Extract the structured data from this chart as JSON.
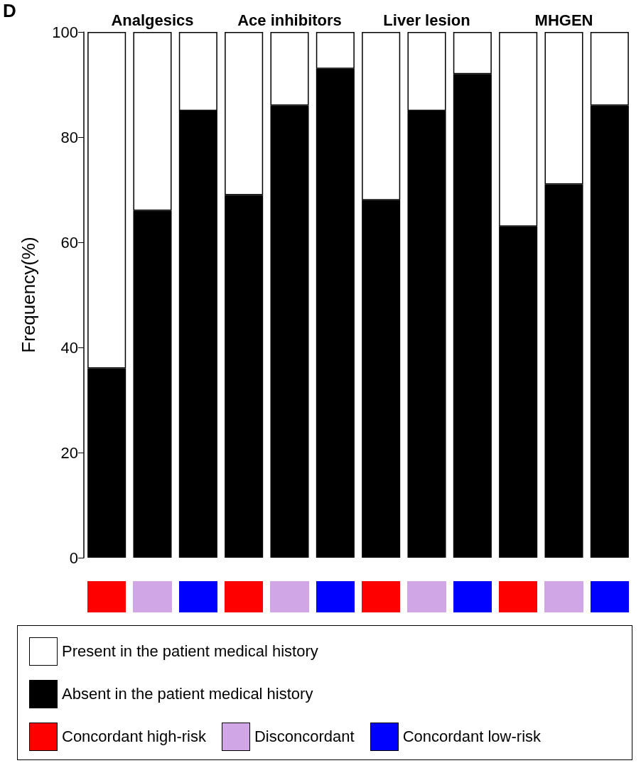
{
  "chart_data": {
    "type": "bar",
    "title": "D",
    "ylabel": "Frequency(%)",
    "stacked": true,
    "categories": [
      null,
      null,
      null,
      null,
      null,
      null,
      null,
      null,
      null,
      null,
      null,
      null
    ],
    "series": [
      {
        "name": "Absent in the patient medical history",
        "color": "#000000",
        "values": [
          36,
          66,
          85,
          69,
          86,
          93,
          68,
          85,
          92,
          63,
          71,
          86
        ]
      },
      {
        "name": "Present in the patient medical history",
        "color": "#ffffff",
        "values": [
          64,
          34,
          15,
          31,
          14,
          7,
          32,
          15,
          8,
          37,
          29,
          14
        ]
      }
    ],
    "ylim": [
      0,
      100
    ],
    "yticks": [
      0,
      20,
      40,
      60,
      80,
      100
    ],
    "grid": false,
    "legend": "bottom",
    "tick_labels": "y",
    "annotations": [
      "Analgesics",
      "Ace inhibitors",
      "Liver lesion",
      "MHGEN",
      "Concordant high-risk",
      "Disconcordant",
      "Concordant low-risk"
    ]
  }
}
